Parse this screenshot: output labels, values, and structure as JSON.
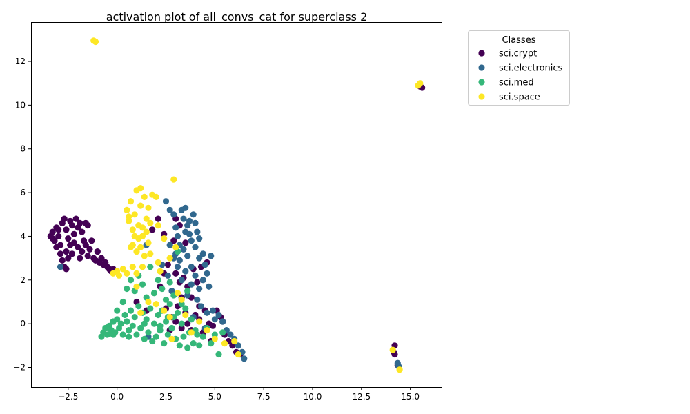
{
  "chart_data": {
    "type": "scatter",
    "title": "activation plot of all_convs_cat for superclass 2",
    "xlabel": "",
    "ylabel": "",
    "xlim": [
      -4.4,
      16.6
    ],
    "ylim": [
      -2.9,
      13.8
    ],
    "xticks": [
      -2.5,
      0.0,
      2.5,
      5.0,
      7.5,
      10.0,
      12.5,
      15.0
    ],
    "xtick_labels": [
      "−2.5",
      "0.0",
      "2.5",
      "5.0",
      "7.5",
      "10.0",
      "12.5",
      "15.0"
    ],
    "yticks": [
      -2,
      0,
      2,
      4,
      6,
      8,
      10,
      12
    ],
    "ytick_labels": [
      "−2",
      "0",
      "2",
      "4",
      "6",
      "8",
      "10",
      "12"
    ],
    "grid": false,
    "legend": {
      "title": "Classes",
      "placement": "outside-upper-right",
      "entries": [
        "sci.crypt",
        "sci.electronics",
        "sci.med",
        "sci.space"
      ]
    },
    "series": [
      {
        "name": "sci.crypt",
        "color": "#440154",
        "points": [
          [
            -3.3,
            4.2
          ],
          [
            -3.2,
            3.8
          ],
          [
            -3.1,
            4.4
          ],
          [
            -3.0,
            4.0
          ],
          [
            -2.9,
            3.6
          ],
          [
            -2.8,
            4.6
          ],
          [
            -2.7,
            4.8
          ],
          [
            -2.6,
            4.3
          ],
          [
            -2.5,
            3.9
          ],
          [
            -2.4,
            4.7
          ],
          [
            -2.3,
            4.5
          ],
          [
            -2.2,
            4.1
          ],
          [
            -2.1,
            4.8
          ],
          [
            -2.0,
            4.4
          ],
          [
            -1.9,
            4.6
          ],
          [
            -1.8,
            4.2
          ],
          [
            -1.6,
            4.6
          ],
          [
            -1.5,
            4.5
          ],
          [
            -3.3,
            3.9
          ],
          [
            -3.1,
            3.5
          ],
          [
            -2.9,
            3.2
          ],
          [
            -2.8,
            2.9
          ],
          [
            -2.7,
            2.6
          ],
          [
            -2.6,
            3.3
          ],
          [
            -2.5,
            3.0
          ],
          [
            -2.4,
            3.6
          ],
          [
            -2.3,
            3.2
          ],
          [
            -2.2,
            3.7
          ],
          [
            -2.0,
            3.5
          ],
          [
            -1.9,
            3.0
          ],
          [
            -1.8,
            3.3
          ],
          [
            -1.7,
            3.8
          ],
          [
            -1.6,
            3.6
          ],
          [
            -1.5,
            3.1
          ],
          [
            -1.4,
            3.4
          ],
          [
            -1.3,
            3.8
          ],
          [
            -1.2,
            3.0
          ],
          [
            -1.1,
            2.9
          ],
          [
            -1.0,
            3.3
          ],
          [
            -0.9,
            2.8
          ],
          [
            -0.8,
            3.0
          ],
          [
            -0.7,
            2.7
          ],
          [
            -0.6,
            2.8
          ],
          [
            -0.5,
            2.6
          ],
          [
            -0.4,
            2.5
          ],
          [
            -0.3,
            2.4
          ],
          [
            -0.2,
            2.5
          ],
          [
            -2.6,
            2.5
          ],
          [
            -3.4,
            4.0
          ],
          [
            -3.0,
            4.3
          ],
          [
            1.0,
            1.0
          ],
          [
            1.5,
            0.6
          ],
          [
            2.5,
            0.7
          ],
          [
            2.8,
            0.3
          ],
          [
            3.0,
            0.1
          ],
          [
            3.1,
            0.8
          ],
          [
            3.3,
            -0.2
          ],
          [
            3.5,
            0.5
          ],
          [
            3.6,
            0.0
          ],
          [
            3.8,
            -0.3
          ],
          [
            4.0,
            0.4
          ],
          [
            4.2,
            0.2
          ],
          [
            4.4,
            -0.4
          ],
          [
            4.5,
            0.6
          ],
          [
            4.7,
            0.0
          ],
          [
            4.9,
            -0.1
          ],
          [
            5.1,
            0.6
          ],
          [
            5.3,
            0.3
          ],
          [
            5.5,
            -0.5
          ],
          [
            5.7,
            -0.8
          ],
          [
            5.9,
            -1.0
          ],
          [
            6.1,
            -1.3
          ],
          [
            6.3,
            -1.4
          ],
          [
            3.0,
            2.3
          ],
          [
            3.2,
            1.9
          ],
          [
            3.4,
            2.1
          ],
          [
            3.6,
            1.7
          ],
          [
            3.8,
            1.2
          ],
          [
            4.1,
            1.9
          ],
          [
            4.3,
            2.6
          ],
          [
            2.6,
            2.7
          ],
          [
            2.9,
            3.8
          ],
          [
            3.0,
            4.8
          ],
          [
            3.2,
            4.5
          ],
          [
            3.5,
            3.7
          ],
          [
            2.4,
            4.1
          ],
          [
            2.1,
            4.8
          ],
          [
            1.8,
            4.3
          ],
          [
            4.6,
            2.8
          ],
          [
            3.3,
            1.2
          ],
          [
            2.4,
            2.3
          ],
          [
            2.2,
            1.7
          ],
          [
            3.9,
            2.5
          ],
          [
            4.2,
            0.8
          ],
          [
            4.8,
            -0.8
          ],
          [
            5.4,
            0.1
          ],
          [
            2.7,
            -0.3
          ],
          [
            14.2,
            -1.0
          ],
          [
            14.15,
            -1.3
          ],
          [
            14.2,
            -1.4
          ],
          [
            15.5,
            10.85
          ],
          [
            15.6,
            10.8
          ],
          [
            14.35,
            -1.9
          ]
        ]
      },
      {
        "name": "sci.electronics",
        "color": "#31688e",
        "points": [
          [
            3.0,
            4.4
          ],
          [
            3.1,
            4.0
          ],
          [
            3.2,
            3.6
          ],
          [
            3.3,
            5.2
          ],
          [
            3.4,
            4.8
          ],
          [
            3.5,
            5.3
          ],
          [
            3.6,
            4.5
          ],
          [
            3.7,
            4.1
          ],
          [
            3.8,
            3.8
          ],
          [
            3.9,
            5.0
          ],
          [
            4.0,
            4.6
          ],
          [
            4.1,
            4.2
          ],
          [
            4.2,
            3.9
          ],
          [
            3.0,
            3.2
          ],
          [
            3.2,
            2.9
          ],
          [
            3.4,
            3.4
          ],
          [
            3.6,
            3.1
          ],
          [
            3.8,
            2.6
          ],
          [
            4.0,
            3.5
          ],
          [
            4.2,
            3.0
          ],
          [
            4.4,
            3.2
          ],
          [
            4.5,
            2.7
          ],
          [
            4.6,
            2.3
          ],
          [
            4.4,
            2.0
          ],
          [
            4.2,
            1.6
          ],
          [
            4.0,
            2.2
          ],
          [
            3.8,
            1.8
          ],
          [
            3.5,
            2.4
          ],
          [
            3.3,
            2.0
          ],
          [
            3.1,
            2.6
          ],
          [
            2.9,
            3.0
          ],
          [
            2.7,
            3.6
          ],
          [
            2.6,
            2.2
          ],
          [
            2.8,
            1.5
          ],
          [
            3.6,
            1.3
          ],
          [
            4.1,
            1.1
          ],
          [
            4.3,
            0.8
          ],
          [
            4.6,
            0.5
          ],
          [
            4.9,
            0.6
          ],
          [
            5.2,
            0.4
          ],
          [
            5.4,
            0.1
          ],
          [
            5.6,
            -0.3
          ],
          [
            5.8,
            -0.5
          ],
          [
            6.0,
            -0.7
          ],
          [
            6.2,
            -1.0
          ],
          [
            6.4,
            -1.3
          ],
          [
            6.5,
            -1.6
          ],
          [
            4.7,
            1.7
          ],
          [
            3.5,
            4.2
          ],
          [
            3.7,
            4.7
          ],
          [
            2.5,
            5.6
          ],
          [
            2.7,
            5.2
          ],
          [
            2.9,
            5.0
          ],
          [
            1.5,
            3.6
          ],
          [
            1.6,
            -0.6
          ],
          [
            2.3,
            2.7
          ],
          [
            4.8,
            3.1
          ],
          [
            3.9,
            0.3
          ],
          [
            4.5,
            -0.2
          ],
          [
            5.0,
            0.2
          ],
          [
            14.35,
            -1.8
          ],
          [
            14.4,
            -1.95
          ],
          [
            -2.9,
            2.6
          ]
        ]
      },
      {
        "name": "sci.med",
        "color": "#35b779",
        "points": [
          [
            -0.8,
            -0.6
          ],
          [
            -0.7,
            -0.4
          ],
          [
            -0.6,
            -0.2
          ],
          [
            -0.5,
            -0.5
          ],
          [
            -0.4,
            -0.1
          ],
          [
            -0.3,
            -0.3
          ],
          [
            -0.2,
            0.1
          ],
          [
            -0.1,
            -0.4
          ],
          [
            0.0,
            0.2
          ],
          [
            0.1,
            -0.2
          ],
          [
            0.2,
            0.0
          ],
          [
            0.3,
            -0.5
          ],
          [
            0.4,
            0.4
          ],
          [
            0.5,
            0.1
          ],
          [
            0.6,
            -0.3
          ],
          [
            0.7,
            0.6
          ],
          [
            0.8,
            -0.1
          ],
          [
            0.9,
            0.3
          ],
          [
            1.0,
            -0.5
          ],
          [
            1.1,
            0.8
          ],
          [
            1.2,
            -0.2
          ],
          [
            1.3,
            0.5
          ],
          [
            1.4,
            -0.7
          ],
          [
            1.5,
            0.2
          ],
          [
            1.6,
            -0.4
          ],
          [
            1.7,
            0.7
          ],
          [
            1.8,
            -0.8
          ],
          [
            1.9,
            0.0
          ],
          [
            2.0,
            -0.6
          ],
          [
            2.1,
            0.4
          ],
          [
            2.2,
            -0.3
          ],
          [
            2.3,
            0.6
          ],
          [
            2.4,
            -0.9
          ],
          [
            2.5,
            0.1
          ],
          [
            2.6,
            -0.5
          ],
          [
            2.7,
            0.9
          ],
          [
            2.8,
            -0.2
          ],
          [
            2.9,
            0.3
          ],
          [
            3.0,
            -0.7
          ],
          [
            3.1,
            0.5
          ],
          [
            3.2,
            -1.0
          ],
          [
            3.3,
            0.0
          ],
          [
            3.4,
            -0.6
          ],
          [
            3.5,
            0.7
          ],
          [
            3.6,
            -1.1
          ],
          [
            3.7,
            -0.4
          ],
          [
            3.8,
            0.2
          ],
          [
            3.9,
            -0.9
          ],
          [
            4.0,
            -0.3
          ],
          [
            4.2,
            -1.0
          ],
          [
            4.4,
            -0.6
          ],
          [
            4.6,
            -0.2
          ],
          [
            4.8,
            -0.9
          ],
          [
            5.0,
            -0.5
          ],
          [
            5.2,
            -1.4
          ],
          [
            5.4,
            -0.4
          ],
          [
            0.3,
            1.0
          ],
          [
            0.5,
            1.6
          ],
          [
            0.7,
            2.0
          ],
          [
            0.9,
            1.5
          ],
          [
            1.1,
            2.2
          ],
          [
            1.3,
            1.8
          ],
          [
            1.5,
            1.2
          ],
          [
            1.7,
            2.6
          ],
          [
            1.9,
            1.4
          ],
          [
            2.1,
            2.0
          ],
          [
            2.3,
            1.6
          ],
          [
            2.5,
            1.1
          ],
          [
            2.7,
            1.9
          ],
          [
            2.9,
            1.3
          ],
          [
            3.1,
            3.3
          ],
          [
            3.3,
            0.9
          ],
          [
            0.0,
            0.6
          ],
          [
            -0.2,
            -0.5
          ],
          [
            0.6,
            -0.6
          ],
          [
            1.4,
            0.0
          ],
          [
            2.2,
            -0.1
          ],
          [
            3.6,
            1.5
          ],
          [
            4.1,
            -0.5
          ],
          [
            2.6,
            0.3
          ]
        ]
      },
      {
        "name": "sci.space",
        "color": "#fde725",
        "points": [
          [
            0.5,
            5.2
          ],
          [
            0.6,
            4.7
          ],
          [
            0.7,
            5.6
          ],
          [
            0.8,
            4.3
          ],
          [
            0.9,
            5.0
          ],
          [
            1.0,
            6.1
          ],
          [
            1.1,
            4.5
          ],
          [
            1.2,
            5.4
          ],
          [
            1.3,
            4.0
          ],
          [
            1.4,
            5.8
          ],
          [
            1.5,
            4.8
          ],
          [
            1.6,
            5.3
          ],
          [
            0.8,
            3.6
          ],
          [
            0.9,
            4.0
          ],
          [
            1.0,
            3.3
          ],
          [
            1.1,
            3.9
          ],
          [
            1.2,
            3.5
          ],
          [
            1.3,
            4.4
          ],
          [
            1.4,
            3.1
          ],
          [
            1.5,
            4.2
          ],
          [
            1.6,
            3.7
          ],
          [
            1.7,
            4.6
          ],
          [
            1.8,
            5.9
          ],
          [
            2.0,
            5.8
          ],
          [
            2.1,
            4.5
          ],
          [
            0.7,
            3.5
          ],
          [
            1.2,
            6.2
          ],
          [
            0.6,
            4.9
          ],
          [
            1.7,
            3.2
          ],
          [
            2.9,
            6.6
          ],
          [
            -0.2,
            2.3
          ],
          [
            0.0,
            2.4
          ],
          [
            0.1,
            2.2
          ],
          [
            0.3,
            2.5
          ],
          [
            0.5,
            2.3
          ],
          [
            0.8,
            2.6
          ],
          [
            1.0,
            2.3
          ],
          [
            1.3,
            2.6
          ],
          [
            1.0,
            1.7
          ],
          [
            1.6,
            1.0
          ],
          [
            2.0,
            0.9
          ],
          [
            2.4,
            0.6
          ],
          [
            2.7,
            0.3
          ],
          [
            3.1,
            1.4
          ],
          [
            3.3,
            1.1
          ],
          [
            3.5,
            0.4
          ],
          [
            3.8,
            -0.4
          ],
          [
            4.2,
            0.1
          ],
          [
            4.6,
            -0.3
          ],
          [
            5.0,
            -0.7
          ],
          [
            5.5,
            -0.9
          ],
          [
            6.0,
            -0.8
          ],
          [
            6.2,
            -1.4
          ],
          [
            2.8,
            -0.7
          ],
          [
            1.2,
            0.5
          ],
          [
            2.2,
            2.4
          ],
          [
            2.7,
            3.0
          ],
          [
            3.0,
            3.5
          ],
          [
            2.4,
            3.9
          ],
          [
            2.1,
            2.8
          ],
          [
            -1.2,
            12.95
          ],
          [
            -1.1,
            12.9
          ],
          [
            15.4,
            10.9
          ],
          [
            15.5,
            11.0
          ],
          [
            14.1,
            -1.2
          ],
          [
            14.45,
            -2.1
          ]
        ]
      }
    ]
  }
}
